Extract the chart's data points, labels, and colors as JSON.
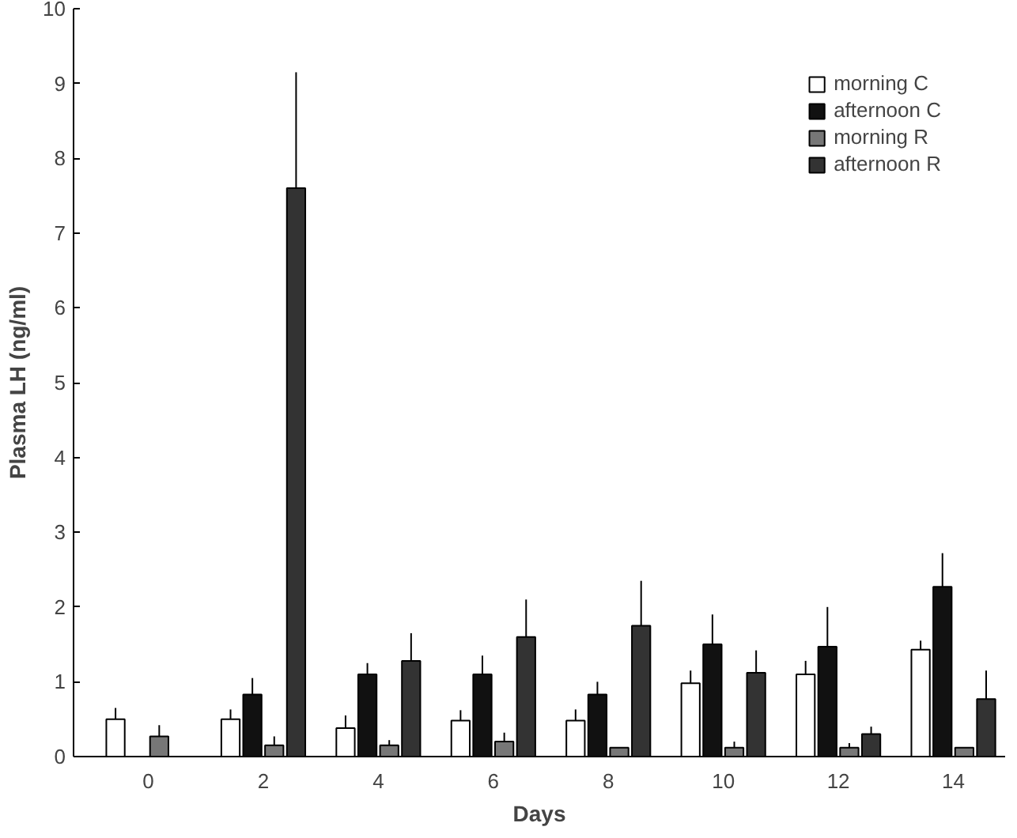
{
  "chart_data": {
    "type": "bar",
    "xlabel": "Days",
    "ylabel": "Plasma LH (ng/ml)",
    "categories": [
      "0",
      "2",
      "4",
      "6",
      "8",
      "10",
      "12",
      "14"
    ],
    "ylim": [
      0,
      10
    ],
    "yticks": [
      0,
      1,
      2,
      3,
      4,
      5,
      6,
      7,
      8,
      9,
      10
    ],
    "grid": false,
    "legend": "top right",
    "series": [
      {
        "name": "morning C",
        "color": "#ffffff",
        "values": [
          0.5,
          0.5,
          0.38,
          0.48,
          0.48,
          0.98,
          1.1,
          1.43
        ],
        "errors": [
          [
            0.5,
            0.65
          ],
          [
            0.5,
            0.63
          ],
          [
            0.38,
            0.55
          ],
          [
            0.48,
            0.62
          ],
          [
            0.48,
            0.63
          ],
          [
            0.98,
            1.15
          ],
          [
            1.1,
            1.28
          ],
          [
            1.43,
            1.55
          ]
        ]
      },
      {
        "name": "afternoon C",
        "color": "#111111",
        "values": [
          null,
          0.83,
          1.1,
          1.1,
          0.83,
          1.5,
          1.47,
          2.27
        ],
        "errors": [
          null,
          [
            0.83,
            1.05
          ],
          [
            1.1,
            1.25
          ],
          [
            1.1,
            1.35
          ],
          [
            0.83,
            1.0
          ],
          [
            1.5,
            1.9
          ],
          [
            1.47,
            2.0
          ],
          [
            2.27,
            2.72
          ]
        ]
      },
      {
        "name": "morning R",
        "color": "#777777",
        "values": [
          0.27,
          0.15,
          0.15,
          0.2,
          0.12,
          0.12,
          0.12,
          0.12
        ],
        "errors": [
          [
            0.27,
            0.42
          ],
          [
            0.15,
            0.27
          ],
          [
            0.15,
            0.22
          ],
          [
            0.2,
            0.32
          ],
          null,
          [
            0.12,
            0.2
          ],
          [
            0.12,
            0.18
          ],
          null
        ]
      },
      {
        "name": "afternoon R",
        "color": "#333333",
        "values": [
          null,
          7.6,
          1.28,
          1.6,
          1.75,
          1.12,
          0.3,
          0.77
        ],
        "errors": [
          null,
          [
            7.6,
            9.15
          ],
          [
            1.28,
            1.65
          ],
          [
            1.6,
            2.1
          ],
          [
            1.75,
            2.35
          ],
          [
            1.12,
            1.42
          ],
          [
            0.3,
            0.4
          ],
          [
            0.77,
            1.15
          ]
        ]
      }
    ]
  }
}
